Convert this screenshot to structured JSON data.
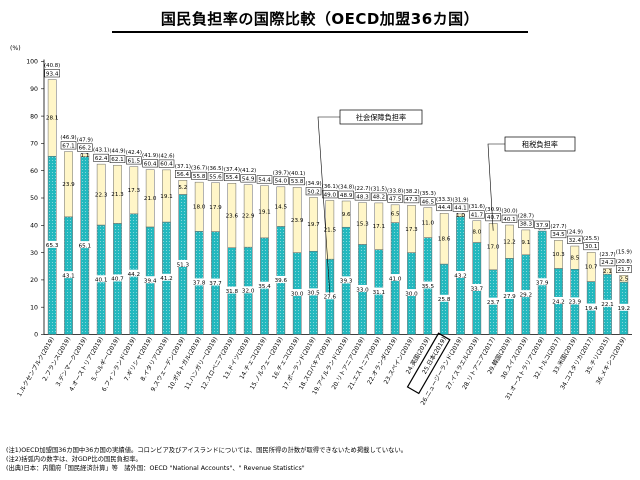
{
  "page": {
    "title": "国民負担率の国際比較（OECD加盟36カ国）"
  },
  "footnotes": [
    "(注1)OECD加盟国36カ国中36カ国の実績値。コロンビア及びアイスランドについては、国民所得の計数が取得できないため掲載していない。",
    "(注2)括弧内の数字は、対GDP比の国民負担率。",
    "(出典)日本：内閣府「国民経済計算」等　諸外国：OECD \"National Accounts\"、\" Revenue Statistics\""
  ],
  "colors": {
    "social_security": "#2EC4C8",
    "tax": "#FFF6C8",
    "outline": "#666666"
  },
  "chart_data": {
    "type": "bar",
    "stacked": true,
    "ylabel": "(%)",
    "ylim": [
      0,
      100
    ],
    "yticks": [
      0,
      10,
      20,
      30,
      40,
      50,
      60,
      70,
      80,
      90,
      100
    ],
    "grid": false,
    "categories": [
      "1.ルクセンブルク(2019)",
      "2.フランス(2019)",
      "3.デンマーク(2019)",
      "4.オーストリア(2019)",
      "5.ベルギー(2019)",
      "6.フィンランド(2019)",
      "7.ギリシャ(2019)",
      "8.イタリア(2019)",
      "9.スウェーデン(2019)",
      "10.ポルトガル(2019)",
      "11.ハンガリー(2019)",
      "12.スロベニア(2019)",
      "13.ドイツ(2019)",
      "14.チェコ(2019)",
      "15.ノルウェー(2019)",
      "16.チェコ(2019)",
      "17.ポーランド(2019)",
      "18.スロバキア(2019)",
      "19.アイルランド(2019)",
      "20.リトアニア(2019)",
      "21.エストニア(2019)",
      "22.オランダ(2019)",
      "23.スペイン(2019)",
      "24.英国(2019)",
      "25.日本(2019)",
      "26.ニュージーランド(2019)",
      "27.イスラエル(2019)",
      "28.リトアニア(2017)",
      "29.韓国(2019)",
      "30.スイス(2019)",
      "31.オーストラリア(2019)",
      "32.トルコ(2017)",
      "33.米国(2019)",
      "34.コスタリカ(2017)",
      "35.チリ(2015)",
      "36.メキシコ(2019)"
    ],
    "series": [
      {
        "name": "社会保障負担率",
        "values": [
          65.3,
          43.1,
          65.1,
          40.1,
          40.7,
          44.2,
          39.4,
          41.2,
          51.3,
          37.8,
          37.7,
          31.8,
          32.0,
          35.4,
          39.6,
          30.0,
          30.5,
          27.6,
          39.3,
          33.0,
          31.1,
          41.0,
          30.0,
          35.5,
          25.8,
          43.2,
          33.7,
          23.7,
          27.9,
          29.2,
          37.9,
          24.2,
          23.9,
          19.4,
          22.1,
          19.2
        ]
      },
      {
        "name": "租税負担率",
        "values": [
          28.1,
          23.9,
          1.1,
          22.3,
          21.3,
          17.3,
          21.0,
          19.1,
          5.2,
          18.0,
          17.9,
          23.6,
          22.9,
          19.1,
          14.5,
          23.9,
          19.7,
          21.5,
          9.6,
          15.3,
          17.1,
          6.5,
          17.3,
          11.0,
          18.6,
          1.0,
          8.0,
          17.0,
          12.2,
          9.1,
          0.0,
          10.3,
          8.5,
          10.7,
          2.1,
          2.5
        ]
      }
    ],
    "totals": [
      93.4,
      67.1,
      66.2,
      62.4,
      62.1,
      61.5,
      60.4,
      60.4,
      56.4,
      55.8,
      55.6,
      55.4,
      54.9,
      54.4,
      54.0,
      53.8,
      50.2,
      49.0,
      48.9,
      48.3,
      48.2,
      47.5,
      47.3,
      46.5,
      44.4,
      44.1,
      41.7,
      40.7,
      40.1,
      38.3,
      37.9,
      34.5,
      32.4,
      30.1,
      24.2,
      21.7
    ],
    "gdp_ratio": [
      "(40.8)",
      "(46.9)",
      "(47.9)",
      "(43.1)",
      "(44.9)",
      "(42.4)",
      "(41.9)",
      "(42.6)",
      "(37.1)",
      "(36.7)",
      "(36.5)",
      "(37.4)",
      "(41.2)",
      "",
      "(39.7)",
      "(40.1)",
      "(34.9)",
      "(36.1)",
      "(34.8)",
      "(22.7)",
      "(31.5)",
      "(33.8)",
      "(38.2)",
      "(35.3)",
      "(33.3)",
      "(31.9)",
      "(31.6)",
      "(30.9)",
      "(30.0)",
      "(28.7)",
      "",
      "(27.7)",
      "(24.9)",
      "(25.5)",
      "(23.7)",
      "(20.8)"
    ],
    "gdp_ratio_extra": "(15.9)",
    "annotations": [
      {
        "text": "社会保障負担率",
        "target_bar": 17,
        "target": "social_security"
      },
      {
        "text": "租税負担率",
        "target_bar": 27,
        "target": "tax"
      }
    ],
    "highlighted_category": 24
  }
}
